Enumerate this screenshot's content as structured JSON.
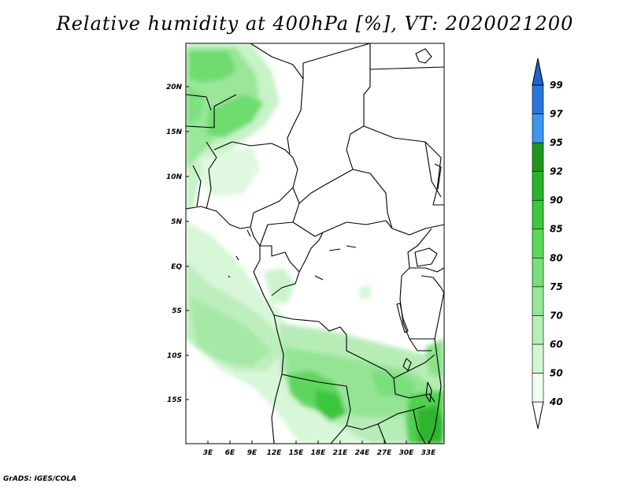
{
  "title": "Relative humidity at 400hPa [%], VT: 2020021200",
  "credit": "GrADS: IGES/COLA",
  "map": {
    "lat_labels": [
      "20N",
      "15N",
      "10N",
      "5N",
      "EQ",
      "5S",
      "10S",
      "15S"
    ],
    "lon_labels": [
      "3E",
      "6E",
      "9E",
      "12E",
      "15E",
      "18E",
      "21E",
      "24E",
      "27E",
      "30E",
      "33E"
    ]
  },
  "colorbar": {
    "levels": [
      "40",
      "50",
      "60",
      "70",
      "75",
      "80",
      "85",
      "90",
      "92",
      "95",
      "97",
      "99"
    ],
    "colors": [
      "#f0fff0",
      "#d2f8d2",
      "#b4f0b4",
      "#96e896",
      "#78e078",
      "#5ad85a",
      "#3cc83c",
      "#28b428",
      "#1e961e",
      "#3c96f0",
      "#2878dc",
      "#1e64c8"
    ]
  }
}
